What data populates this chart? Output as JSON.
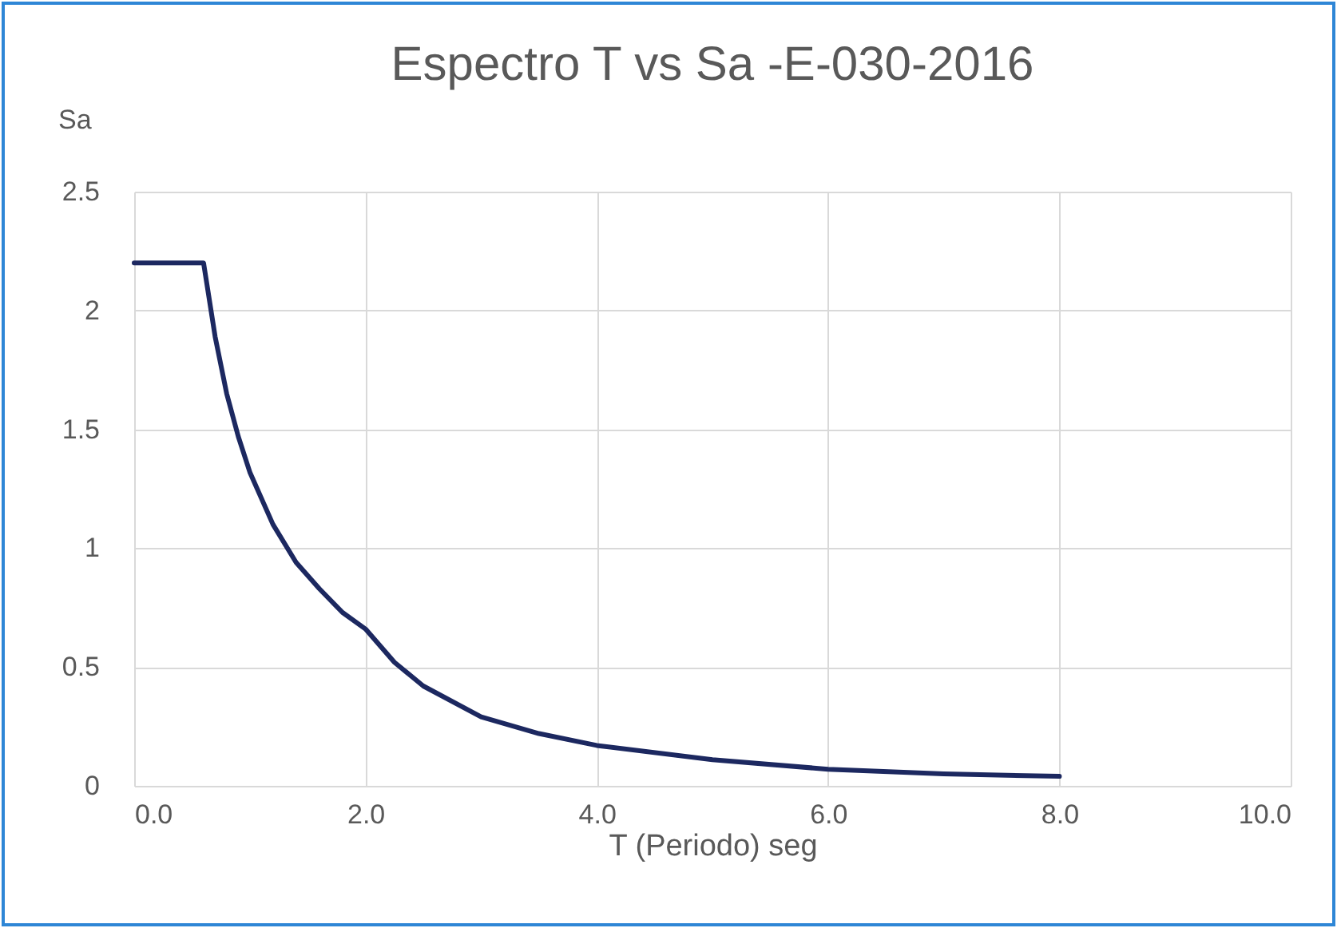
{
  "chart_data": {
    "type": "line",
    "title": "Espectro T vs Sa -E-030-2016",
    "xlabel": "T (Periodo) seg",
    "ylabel": "Sa",
    "x": [
      0,
      0.6,
      0.7,
      0.8,
      0.9,
      1.0,
      1.2,
      1.4,
      1.6,
      1.8,
      2.0,
      2.25,
      2.5,
      3.0,
      3.5,
      4.0,
      5.0,
      6.0,
      7.0,
      8.0
    ],
    "series": [
      {
        "color": "#1c2860",
        "values": [
          2.2,
          2.2,
          1.89,
          1.65,
          1.47,
          1.32,
          1.1,
          0.94,
          0.83,
          0.73,
          0.66,
          0.52,
          0.42,
          0.29,
          0.22,
          0.17,
          0.11,
          0.07,
          0.05,
          0.04
        ]
      }
    ],
    "xlim": [
      0,
      10
    ],
    "xticks": [
      {
        "value": 0,
        "label": "0.0"
      },
      {
        "value": 2,
        "label": "2.0"
      },
      {
        "value": 4,
        "label": "4.0"
      },
      {
        "value": 6,
        "label": "6.0"
      },
      {
        "value": 8,
        "label": "8.0"
      },
      {
        "value": 10,
        "label": "10.0"
      }
    ],
    "ylim": [
      0,
      2.5
    ],
    "yticks": [
      0,
      0.5,
      1,
      1.5,
      2,
      2.5
    ],
    "grid": true,
    "marker": "none",
    "line_style": "solid"
  }
}
